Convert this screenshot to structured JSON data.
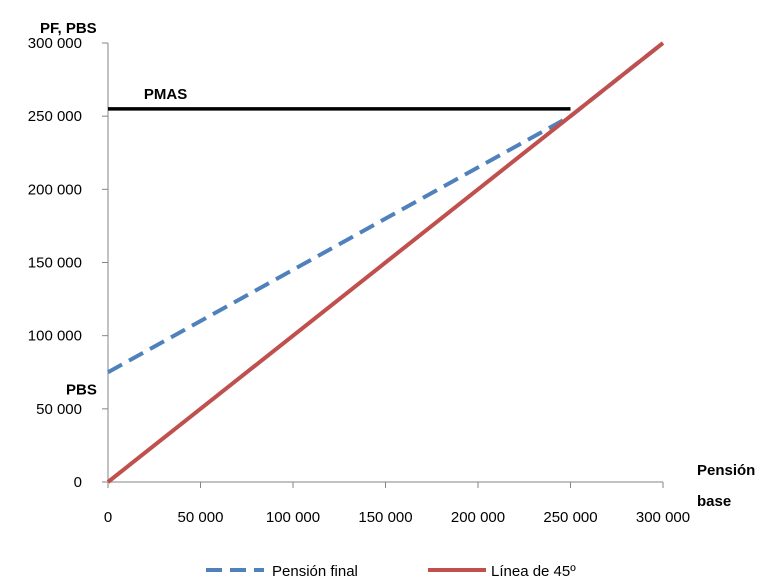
{
  "chart_data": {
    "type": "line",
    "ylabel": "PF, PBS",
    "xlabel_lines": [
      "Pensión",
      "base"
    ],
    "xlim": [
      0,
      300000
    ],
    "ylim": [
      0,
      300000
    ],
    "x_ticks": [
      0,
      50000,
      100000,
      150000,
      200000,
      250000,
      300000
    ],
    "y_ticks": [
      0,
      50000,
      100000,
      150000,
      200000,
      250000,
      300000
    ],
    "x_tick_labels": [
      "0",
      "50 000",
      "100 000",
      "150 000",
      "200 000",
      "250 000",
      "300 000"
    ],
    "y_tick_labels": [
      "0",
      "50 000",
      "100 000",
      "150 000",
      "200 000",
      "250 000",
      "300 000"
    ],
    "series": [
      {
        "name": "Pensión final",
        "color": "#4F81BD",
        "style": "dashed",
        "x": [
          0,
          250000,
          300000
        ],
        "y": [
          75000,
          250000,
          300000
        ]
      },
      {
        "name": "Línea de 45º",
        "color": "#C0504D",
        "style": "solid",
        "x": [
          0,
          300000
        ],
        "y": [
          0,
          300000
        ]
      },
      {
        "color": "#000000",
        "style": "solid",
        "x": [
          0,
          250000
        ],
        "y": [
          255000,
          255000
        ]
      }
    ],
    "annotations": [
      {
        "text": "PMAS",
        "x": 14000,
        "y": 255000
      },
      {
        "text": "PBS",
        "x": 0,
        "y": 75000
      }
    ],
    "grid": false,
    "legend_position": "bottom"
  }
}
